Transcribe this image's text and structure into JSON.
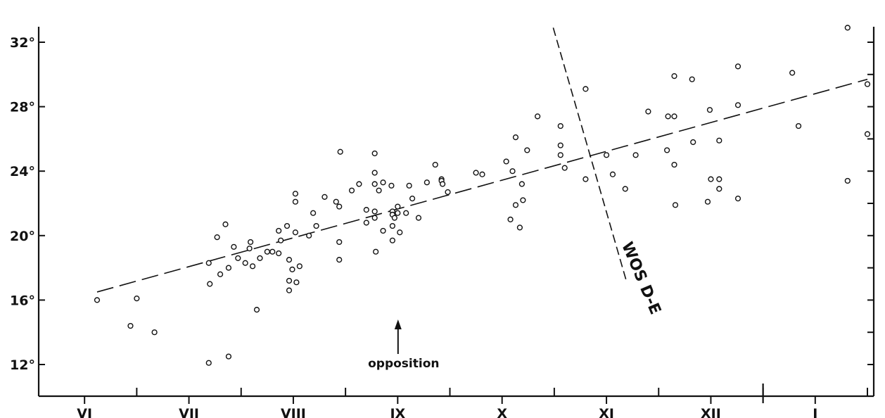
{
  "chart_data": {
    "type": "scatter",
    "title": "",
    "xlabel": "",
    "ylabel": "",
    "x_categories": [
      "VI",
      "VII",
      "VIII",
      "IX",
      "X",
      "XI",
      "XII",
      "I"
    ],
    "xlim": [
      0,
      8
    ],
    "ylim": [
      10.5,
      33.5
    ],
    "y_tick_labels": [
      "12°",
      "16°",
      "20°",
      "24°",
      "28°",
      "32°"
    ],
    "y_tick_values": [
      12,
      16,
      20,
      24,
      28,
      32
    ],
    "y_minor_ticks": [
      14,
      18,
      22,
      26,
      30
    ],
    "x_minor_ticks": [
      0.5,
      1.5,
      2.5,
      3.5,
      4.5,
      5.5,
      6.5,
      7.5
    ],
    "grid": false,
    "points": [
      [
        0.62,
        16.0
      ],
      [
        0.94,
        14.4
      ],
      [
        1.0,
        16.1
      ],
      [
        1.17,
        14.0
      ],
      [
        1.69,
        12.1
      ],
      [
        1.69,
        18.3
      ],
      [
        1.7,
        17.0
      ],
      [
        1.77,
        19.9
      ],
      [
        1.8,
        17.6
      ],
      [
        1.85,
        20.7
      ],
      [
        1.88,
        12.5
      ],
      [
        1.88,
        18.0
      ],
      [
        1.93,
        19.3
      ],
      [
        1.97,
        18.6
      ],
      [
        2.04,
        18.3
      ],
      [
        2.08,
        19.2
      ],
      [
        2.09,
        19.6
      ],
      [
        2.11,
        18.1
      ],
      [
        2.15,
        15.4
      ],
      [
        2.18,
        18.6
      ],
      [
        2.25,
        19.0
      ],
      [
        2.3,
        19.0
      ],
      [
        2.36,
        20.3
      ],
      [
        2.36,
        18.9
      ],
      [
        2.38,
        19.7
      ],
      [
        2.44,
        20.6
      ],
      [
        2.46,
        16.6
      ],
      [
        2.46,
        17.2
      ],
      [
        2.46,
        18.5
      ],
      [
        2.49,
        17.9
      ],
      [
        2.52,
        22.6
      ],
      [
        2.52,
        22.1
      ],
      [
        2.52,
        20.2
      ],
      [
        2.53,
        17.1
      ],
      [
        2.56,
        18.1
      ],
      [
        2.65,
        20.0
      ],
      [
        2.69,
        21.4
      ],
      [
        2.72,
        20.6
      ],
      [
        2.8,
        22.4
      ],
      [
        2.91,
        22.1
      ],
      [
        2.94,
        21.8
      ],
      [
        2.94,
        19.6
      ],
      [
        2.94,
        18.5
      ],
      [
        2.95,
        25.2
      ],
      [
        3.06,
        22.8
      ],
      [
        3.13,
        23.2
      ],
      [
        3.2,
        21.6
      ],
      [
        3.2,
        20.8
      ],
      [
        3.28,
        25.1
      ],
      [
        3.28,
        23.9
      ],
      [
        3.28,
        23.2
      ],
      [
        3.28,
        21.5
      ],
      [
        3.28,
        21.1
      ],
      [
        3.29,
        19.0
      ],
      [
        3.32,
        22.8
      ],
      [
        3.36,
        23.3
      ],
      [
        3.36,
        20.3
      ],
      [
        3.44,
        23.1
      ],
      [
        3.45,
        21.5
      ],
      [
        3.45,
        21.3
      ],
      [
        3.45,
        20.6
      ],
      [
        3.45,
        19.7
      ],
      [
        3.47,
        21.1
      ],
      [
        3.5,
        21.8
      ],
      [
        3.5,
        21.4
      ],
      [
        3.52,
        20.2
      ],
      [
        3.58,
        21.4
      ],
      [
        3.61,
        23.1
      ],
      [
        3.64,
        22.3
      ],
      [
        3.7,
        21.1
      ],
      [
        3.78,
        23.3
      ],
      [
        3.86,
        24.4
      ],
      [
        3.92,
        23.5
      ],
      [
        3.92,
        23.4
      ],
      [
        3.93,
        23.2
      ],
      [
        3.98,
        22.7
      ],
      [
        4.25,
        23.9
      ],
      [
        4.31,
        23.8
      ],
      [
        4.54,
        24.6
      ],
      [
        4.58,
        21.0
      ],
      [
        4.6,
        24.0
      ],
      [
        4.63,
        26.1
      ],
      [
        4.63,
        21.9
      ],
      [
        4.67,
        20.5
      ],
      [
        4.69,
        23.2
      ],
      [
        4.7,
        22.2
      ],
      [
        4.74,
        25.3
      ],
      [
        4.84,
        27.4
      ],
      [
        5.06,
        26.8
      ],
      [
        5.06,
        25.6
      ],
      [
        5.06,
        25.0
      ],
      [
        5.1,
        24.2
      ],
      [
        5.3,
        29.1
      ],
      [
        5.3,
        23.5
      ],
      [
        5.5,
        25.0
      ],
      [
        5.56,
        23.8
      ],
      [
        5.68,
        22.9
      ],
      [
        5.78,
        25.0
      ],
      [
        5.9,
        27.7
      ],
      [
        6.08,
        25.3
      ],
      [
        6.09,
        27.4
      ],
      [
        6.15,
        29.9
      ],
      [
        6.15,
        27.4
      ],
      [
        6.15,
        24.4
      ],
      [
        6.16,
        21.9
      ],
      [
        6.32,
        29.7
      ],
      [
        6.33,
        25.8
      ],
      [
        6.47,
        22.1
      ],
      [
        6.49,
        27.8
      ],
      [
        6.5,
        23.5
      ],
      [
        6.58,
        25.9
      ],
      [
        6.58,
        23.5
      ],
      [
        6.58,
        22.9
      ],
      [
        6.76,
        30.5
      ],
      [
        6.76,
        28.1
      ],
      [
        6.76,
        22.3
      ],
      [
        7.28,
        30.1
      ],
      [
        7.34,
        26.8
      ],
      [
        7.81,
        32.9
      ],
      [
        7.81,
        23.4
      ],
      [
        8.0,
        29.4
      ],
      [
        8.0,
        26.3
      ]
    ],
    "trend_line": {
      "x": [
        0.62,
        8.0
      ],
      "y": [
        16.5,
        29.7
      ]
    },
    "cross_line": {
      "x": [
        4.99,
        5.69
      ],
      "y": [
        32.9,
        17.2
      ]
    },
    "annotations": {
      "cross_label": "WOS D-E",
      "arrow_label": "opposition"
    },
    "opposition_x": 3.2
  }
}
